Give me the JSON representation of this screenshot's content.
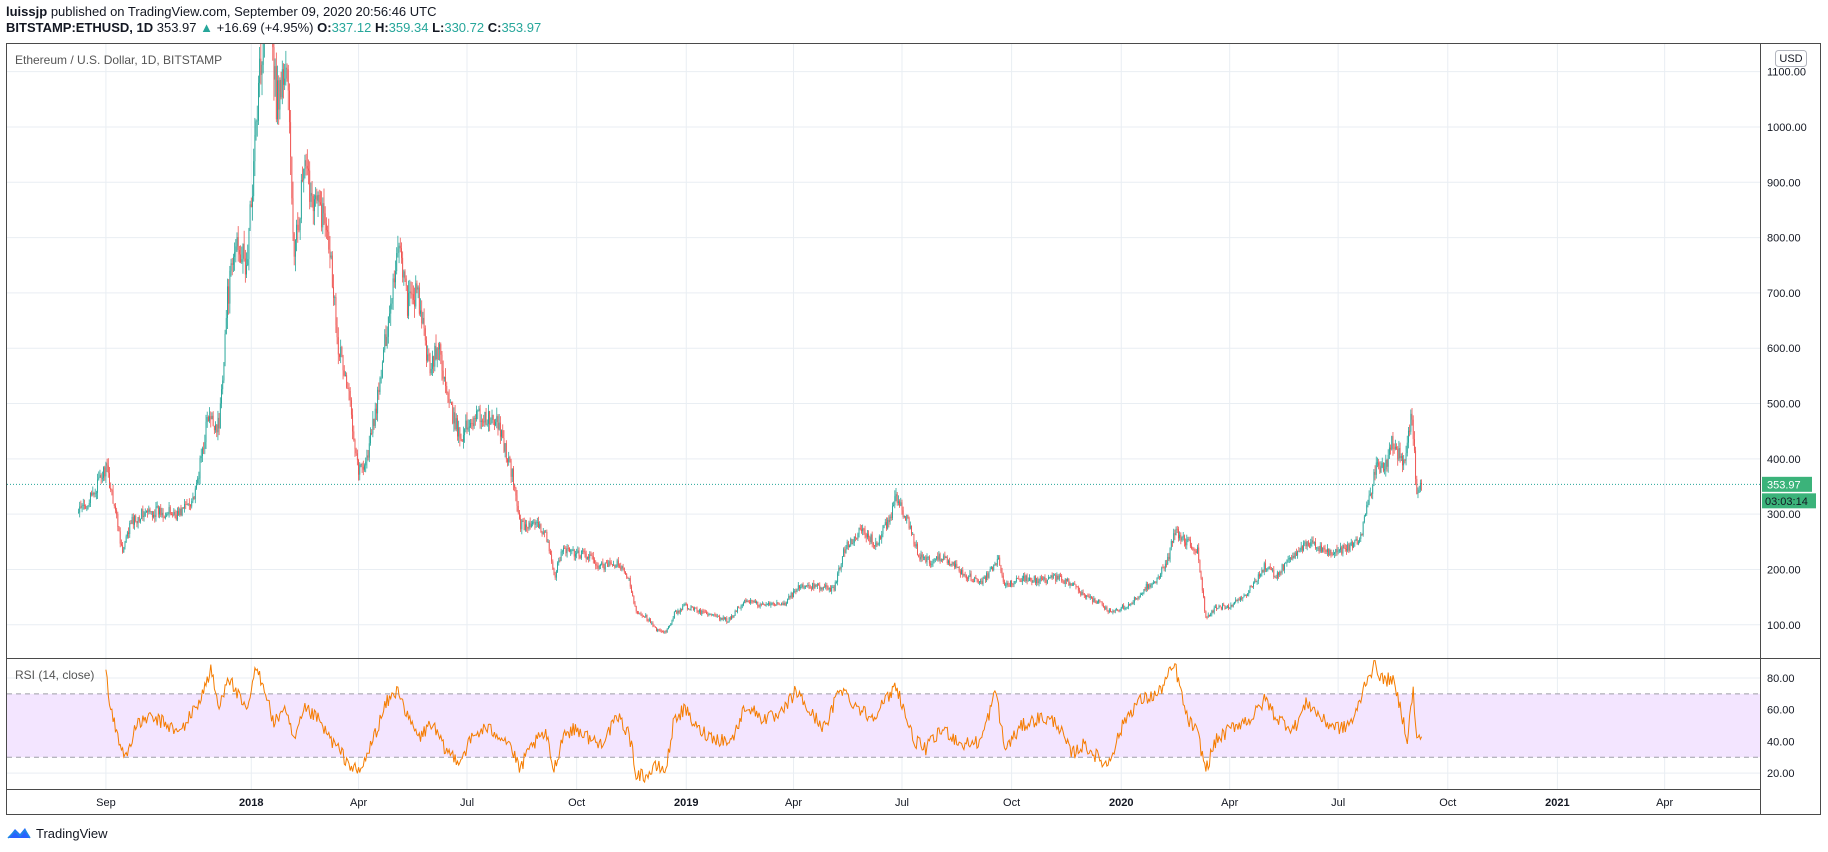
{
  "header": {
    "author": "luissjp",
    "published_text": "published on TradingView.com, September 09, 2020 20:56:46 UTC",
    "symbol": "BITSTAMP:ETHUSD, 1D",
    "last_price": "353.97",
    "change": "+16.69 (+4.95%)",
    "open_label": "O:",
    "open": "337.12",
    "high_label": "H:",
    "high": "359.34",
    "low_label": "L:",
    "low": "330.72",
    "close_label": "C:",
    "close": "353.97"
  },
  "footer": {
    "brand": "TradingView"
  },
  "colors": {
    "up": "#26a69a",
    "down": "#ef5350",
    "rsi_line": "#f57c00",
    "rsi_band": "#f3e5ff",
    "grid": "#e9eef3",
    "price_tag": "#3bb37a"
  },
  "chart_data": [
    {
      "type": "candlestick",
      "title": "Ethereum / U.S. Dollar, 1D, BITSTAMP",
      "currency_label": "USD",
      "ylim": [
        40,
        1150
      ],
      "y_ticks": [
        "100.00",
        "200.00",
        "300.00",
        "400.00",
        "500.00",
        "600.00",
        "700.00",
        "800.00",
        "900.00",
        "1000.00",
        "1100.00"
      ],
      "current_price_tag": "353.97",
      "countdown_tag": "03:03:14",
      "x_ticks": [
        {
          "date": "2017-09-01",
          "label": "Sep",
          "bold": false
        },
        {
          "date": "2018-01-01",
          "label": "2018",
          "bold": true
        },
        {
          "date": "2018-04-01",
          "label": "Apr",
          "bold": false
        },
        {
          "date": "2018-07-01",
          "label": "Jul",
          "bold": false
        },
        {
          "date": "2018-10-01",
          "label": "Oct",
          "bold": false
        },
        {
          "date": "2019-01-01",
          "label": "2019",
          "bold": true
        },
        {
          "date": "2019-04-01",
          "label": "Apr",
          "bold": false
        },
        {
          "date": "2019-07-01",
          "label": "Jul",
          "bold": false
        },
        {
          "date": "2019-10-01",
          "label": "Oct",
          "bold": false
        },
        {
          "date": "2020-01-01",
          "label": "2020",
          "bold": true
        },
        {
          "date": "2020-04-01",
          "label": "Apr",
          "bold": false
        },
        {
          "date": "2020-07-01",
          "label": "Jul",
          "bold": false
        },
        {
          "date": "2020-10-01",
          "label": "Oct",
          "bold": false
        },
        {
          "date": "2021-01-01",
          "label": "2021",
          "bold": true
        },
        {
          "date": "2021-04-01",
          "label": "Apr",
          "bold": false
        }
      ],
      "x_range": [
        "2017-06-10",
        "2021-06-20"
      ],
      "close_series": [
        [
          "2017-08-08",
          300
        ],
        [
          "2017-08-20",
          330
        ],
        [
          "2017-09-01",
          385
        ],
        [
          "2017-09-08",
          320
        ],
        [
          "2017-09-15",
          230
        ],
        [
          "2017-09-22",
          285
        ],
        [
          "2017-10-01",
          300
        ],
        [
          "2017-10-15",
          305
        ],
        [
          "2017-11-01",
          300
        ],
        [
          "2017-11-15",
          335
        ],
        [
          "2017-11-25",
          470
        ],
        [
          "2017-12-05",
          460
        ],
        [
          "2017-12-12",
          690
        ],
        [
          "2017-12-20",
          800
        ],
        [
          "2017-12-28",
          740
        ],
        [
          "2018-01-05",
          1000
        ],
        [
          "2018-01-10",
          1150
        ],
        [
          "2018-01-15",
          1300
        ],
        [
          "2018-01-22",
          1050
        ],
        [
          "2018-01-31",
          1110
        ],
        [
          "2018-02-06",
          760
        ],
        [
          "2018-02-14",
          920
        ],
        [
          "2018-02-25",
          860
        ],
        [
          "2018-03-06",
          830
        ],
        [
          "2018-03-15",
          610
        ],
        [
          "2018-03-25",
          500
        ],
        [
          "2018-04-01",
          380
        ],
        [
          "2018-04-08",
          400
        ],
        [
          "2018-04-18",
          520
        ],
        [
          "2018-04-25",
          640
        ],
        [
          "2018-05-05",
          800
        ],
        [
          "2018-05-12",
          680
        ],
        [
          "2018-05-20",
          700
        ],
        [
          "2018-05-30",
          570
        ],
        [
          "2018-06-08",
          600
        ],
        [
          "2018-06-15",
          500
        ],
        [
          "2018-06-25",
          440
        ],
        [
          "2018-07-08",
          480
        ],
        [
          "2018-07-20",
          470
        ],
        [
          "2018-07-28",
          460
        ],
        [
          "2018-08-08",
          370
        ],
        [
          "2018-08-15",
          280
        ],
        [
          "2018-08-25",
          280
        ],
        [
          "2018-09-05",
          270
        ],
        [
          "2018-09-12",
          185
        ],
        [
          "2018-09-20",
          240
        ],
        [
          "2018-09-28",
          230
        ],
        [
          "2018-10-10",
          225
        ],
        [
          "2018-10-20",
          205
        ],
        [
          "2018-11-05",
          210
        ],
        [
          "2018-11-14",
          180
        ],
        [
          "2018-11-20",
          125
        ],
        [
          "2018-11-28",
          115
        ],
        [
          "2018-12-07",
          90
        ],
        [
          "2018-12-15",
          85
        ],
        [
          "2018-12-22",
          120
        ],
        [
          "2018-12-31",
          135
        ],
        [
          "2019-01-10",
          125
        ],
        [
          "2019-01-20",
          118
        ],
        [
          "2019-02-05",
          107
        ],
        [
          "2019-02-20",
          145
        ],
        [
          "2019-03-05",
          135
        ],
        [
          "2019-03-25",
          140
        ],
        [
          "2019-04-05",
          168
        ],
        [
          "2019-04-20",
          170
        ],
        [
          "2019-05-05",
          165
        ],
        [
          "2019-05-15",
          245
        ],
        [
          "2019-05-28",
          270
        ],
        [
          "2019-06-10",
          245
        ],
        [
          "2019-06-20",
          290
        ],
        [
          "2019-06-26",
          330
        ],
        [
          "2019-07-05",
          290
        ],
        [
          "2019-07-15",
          225
        ],
        [
          "2019-07-25",
          215
        ],
        [
          "2019-08-05",
          225
        ],
        [
          "2019-08-20",
          195
        ],
        [
          "2019-09-05",
          175
        ],
        [
          "2019-09-20",
          215
        ],
        [
          "2019-09-25",
          170
        ],
        [
          "2019-10-10",
          185
        ],
        [
          "2019-10-25",
          180
        ],
        [
          "2019-11-08",
          185
        ],
        [
          "2019-11-20",
          175
        ],
        [
          "2019-12-01",
          150
        ],
        [
          "2019-12-15",
          140
        ],
        [
          "2019-12-20",
          125
        ],
        [
          "2019-12-31",
          130
        ],
        [
          "2020-01-10",
          140
        ],
        [
          "2020-01-20",
          165
        ],
        [
          "2020-02-01",
          185
        ],
        [
          "2020-02-10",
          225
        ],
        [
          "2020-02-15",
          270
        ],
        [
          "2020-02-25",
          250
        ],
        [
          "2020-03-05",
          235
        ],
        [
          "2020-03-12",
          110
        ],
        [
          "2020-03-20",
          130
        ],
        [
          "2020-04-01",
          135
        ],
        [
          "2020-04-15",
          155
        ],
        [
          "2020-04-30",
          205
        ],
        [
          "2020-05-10",
          190
        ],
        [
          "2020-05-30",
          240
        ],
        [
          "2020-06-10",
          245
        ],
        [
          "2020-06-25",
          230
        ],
        [
          "2020-07-10",
          240
        ],
        [
          "2020-07-20",
          260
        ],
        [
          "2020-07-26",
          320
        ],
        [
          "2020-08-02",
          385
        ],
        [
          "2020-08-10",
          390
        ],
        [
          "2020-08-15",
          435
        ],
        [
          "2020-08-25",
          390
        ],
        [
          "2020-09-01",
          480
        ],
        [
          "2020-09-05",
          340
        ],
        [
          "2020-09-09",
          354
        ]
      ]
    },
    {
      "type": "line",
      "title": "RSI (14, close)",
      "ylim": [
        10,
        92
      ],
      "y_ticks": [
        "20.00",
        "40.00",
        "60.00",
        "80.00"
      ],
      "band": [
        30,
        70
      ],
      "series": [
        [
          "2017-09-01",
          85
        ],
        [
          "2017-09-05",
          60
        ],
        [
          "2017-09-12",
          40
        ],
        [
          "2017-09-18",
          30
        ],
        [
          "2017-09-25",
          48
        ],
        [
          "2017-10-05",
          55
        ],
        [
          "2017-10-20",
          52
        ],
        [
          "2017-11-01",
          45
        ],
        [
          "2017-11-10",
          55
        ],
        [
          "2017-11-20",
          68
        ],
        [
          "2017-11-28",
          85
        ],
        [
          "2017-12-05",
          60
        ],
        [
          "2017-12-12",
          82
        ],
        [
          "2017-12-20",
          70
        ],
        [
          "2017-12-28",
          58
        ],
        [
          "2018-01-05",
          86
        ],
        [
          "2018-01-12",
          75
        ],
        [
          "2018-01-20",
          50
        ],
        [
          "2018-01-28",
          62
        ],
        [
          "2018-02-06",
          40
        ],
        [
          "2018-02-15",
          60
        ],
        [
          "2018-02-25",
          55
        ],
        [
          "2018-03-05",
          45
        ],
        [
          "2018-03-15",
          35
        ],
        [
          "2018-03-25",
          25
        ],
        [
          "2018-04-01",
          20
        ],
        [
          "2018-04-05",
          25
        ],
        [
          "2018-04-15",
          45
        ],
        [
          "2018-04-25",
          65
        ],
        [
          "2018-05-05",
          73
        ],
        [
          "2018-05-12",
          55
        ],
        [
          "2018-05-22",
          42
        ],
        [
          "2018-06-01",
          52
        ],
        [
          "2018-06-12",
          35
        ],
        [
          "2018-06-25",
          28
        ],
        [
          "2018-07-05",
          42
        ],
        [
          "2018-07-15",
          48
        ],
        [
          "2018-07-25",
          46
        ],
        [
          "2018-08-05",
          40
        ],
        [
          "2018-08-14",
          22
        ],
        [
          "2018-08-25",
          38
        ],
        [
          "2018-09-05",
          45
        ],
        [
          "2018-09-12",
          22
        ],
        [
          "2018-09-20",
          45
        ],
        [
          "2018-10-01",
          48
        ],
        [
          "2018-10-10",
          43
        ],
        [
          "2018-10-20",
          38
        ],
        [
          "2018-11-05",
          55
        ],
        [
          "2018-11-14",
          45
        ],
        [
          "2018-11-20",
          20
        ],
        [
          "2018-11-28",
          18
        ],
        [
          "2018-12-07",
          24
        ],
        [
          "2018-12-15",
          22
        ],
        [
          "2018-12-22",
          55
        ],
        [
          "2018-12-31",
          60
        ],
        [
          "2019-01-10",
          48
        ],
        [
          "2019-01-25",
          42
        ],
        [
          "2019-02-08",
          40
        ],
        [
          "2019-02-20",
          63
        ],
        [
          "2019-03-05",
          55
        ],
        [
          "2019-03-20",
          55
        ],
        [
          "2019-04-03",
          72
        ],
        [
          "2019-04-15",
          58
        ],
        [
          "2019-04-28",
          48
        ],
        [
          "2019-05-10",
          75
        ],
        [
          "2019-05-20",
          65
        ],
        [
          "2019-06-05",
          55
        ],
        [
          "2019-06-20",
          68
        ],
        [
          "2019-06-26",
          76
        ],
        [
          "2019-07-10",
          42
        ],
        [
          "2019-07-20",
          35
        ],
        [
          "2019-08-05",
          48
        ],
        [
          "2019-08-20",
          38
        ],
        [
          "2019-09-05",
          40
        ],
        [
          "2019-09-18",
          72
        ],
        [
          "2019-09-25",
          35
        ],
        [
          "2019-10-10",
          50
        ],
        [
          "2019-10-25",
          55
        ],
        [
          "2019-11-08",
          52
        ],
        [
          "2019-11-20",
          32
        ],
        [
          "2019-12-01",
          38
        ],
        [
          "2019-12-15",
          28
        ],
        [
          "2019-12-20",
          25
        ],
        [
          "2020-01-05",
          55
        ],
        [
          "2020-01-15",
          65
        ],
        [
          "2020-02-01",
          70
        ],
        [
          "2020-02-10",
          82
        ],
        [
          "2020-02-15",
          88
        ],
        [
          "2020-02-25",
          55
        ],
        [
          "2020-03-05",
          45
        ],
        [
          "2020-03-12",
          22
        ],
        [
          "2020-03-20",
          40
        ],
        [
          "2020-04-05",
          50
        ],
        [
          "2020-04-20",
          55
        ],
        [
          "2020-05-01",
          67
        ],
        [
          "2020-05-10",
          55
        ],
        [
          "2020-05-25",
          48
        ],
        [
          "2020-06-05",
          65
        ],
        [
          "2020-06-20",
          52
        ],
        [
          "2020-07-05",
          48
        ],
        [
          "2020-07-15",
          55
        ],
        [
          "2020-07-25",
          80
        ],
        [
          "2020-08-01",
          88
        ],
        [
          "2020-08-08",
          78
        ],
        [
          "2020-08-15",
          80
        ],
        [
          "2020-08-22",
          62
        ],
        [
          "2020-08-28",
          42
        ],
        [
          "2020-09-02",
          72
        ],
        [
          "2020-09-05",
          40
        ],
        [
          "2020-09-09",
          43
        ]
      ]
    }
  ]
}
